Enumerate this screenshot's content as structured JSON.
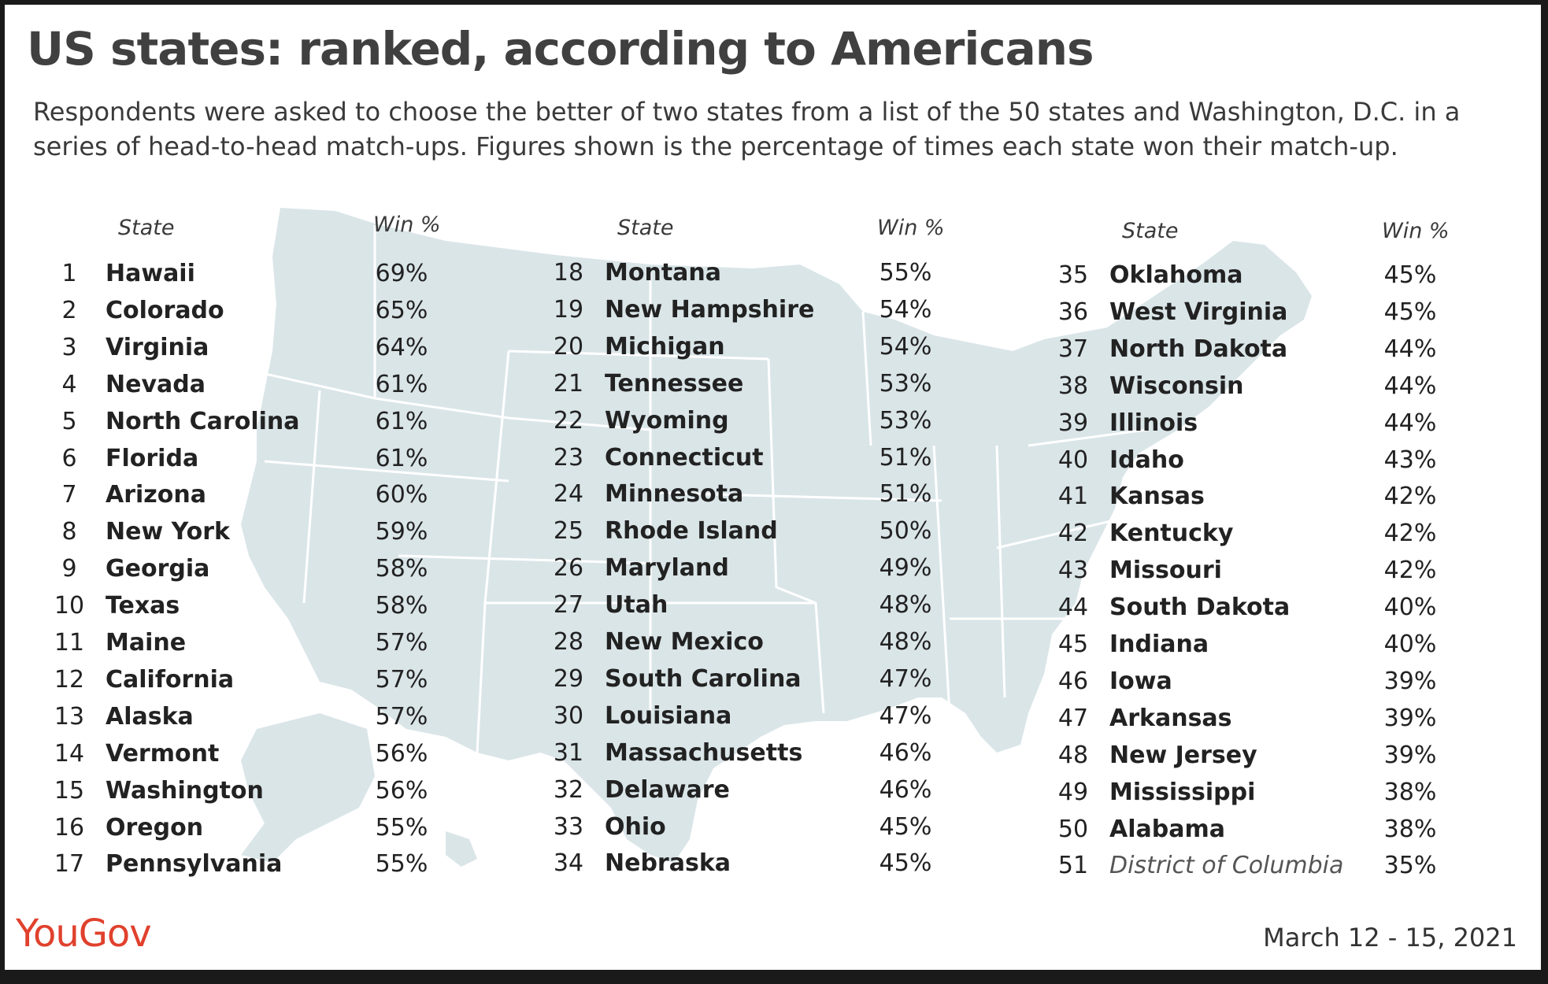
{
  "chart_data": {
    "type": "table",
    "title": "US states: ranked, according to Americans",
    "subtitle": "Respondents were asked to choose the better of two states from a list of the 50 states and Washington, D.C. in a series of head-to-head match-ups. Figures shown is the percentage of times each state won their match-up.",
    "columns": [
      "State",
      "Win %"
    ],
    "rows": [
      {
        "rank": "1",
        "state": "Hawaii",
        "win": "69%"
      },
      {
        "rank": "2",
        "state": "Colorado",
        "win": "65%"
      },
      {
        "rank": "3",
        "state": "Virginia",
        "win": "64%"
      },
      {
        "rank": "4",
        "state": "Nevada",
        "win": "61%"
      },
      {
        "rank": "5",
        "state": "North Carolina",
        "win": "61%"
      },
      {
        "rank": "6",
        "state": "Florida",
        "win": "61%"
      },
      {
        "rank": "7",
        "state": "Arizona",
        "win": "60%"
      },
      {
        "rank": "8",
        "state": "New York",
        "win": "59%"
      },
      {
        "rank": "9",
        "state": "Georgia",
        "win": "58%"
      },
      {
        "rank": "10",
        "state": "Texas",
        "win": "58%"
      },
      {
        "rank": "11",
        "state": "Maine",
        "win": "57%"
      },
      {
        "rank": "12",
        "state": "California",
        "win": "57%"
      },
      {
        "rank": "13",
        "state": "Alaska",
        "win": "57%"
      },
      {
        "rank": "14",
        "state": "Vermont",
        "win": "56%"
      },
      {
        "rank": "15",
        "state": "Washington",
        "win": "56%"
      },
      {
        "rank": "16",
        "state": "Oregon",
        "win": "55%"
      },
      {
        "rank": "17",
        "state": "Pennsylvania",
        "win": "55%"
      },
      {
        "rank": "18",
        "state": "Montana",
        "win": "55%"
      },
      {
        "rank": "19",
        "state": "New Hampshire",
        "win": "54%"
      },
      {
        "rank": "20",
        "state": "Michigan",
        "win": "54%"
      },
      {
        "rank": "21",
        "state": "Tennessee",
        "win": "53%"
      },
      {
        "rank": "22",
        "state": "Wyoming",
        "win": "53%"
      },
      {
        "rank": "23",
        "state": "Connecticut",
        "win": "51%"
      },
      {
        "rank": "24",
        "state": "Minnesota",
        "win": "51%"
      },
      {
        "rank": "25",
        "state": "Rhode Island",
        "win": "50%"
      },
      {
        "rank": "26",
        "state": "Maryland",
        "win": "49%"
      },
      {
        "rank": "27",
        "state": "Utah",
        "win": "48%"
      },
      {
        "rank": "28",
        "state": "New Mexico",
        "win": "48%"
      },
      {
        "rank": "29",
        "state": "South Carolina",
        "win": "47%"
      },
      {
        "rank": "30",
        "state": "Louisiana",
        "win": "47%"
      },
      {
        "rank": "31",
        "state": "Massachusetts",
        "win": "46%"
      },
      {
        "rank": "32",
        "state": "Delaware",
        "win": "46%"
      },
      {
        "rank": "33",
        "state": "Ohio",
        "win": "45%"
      },
      {
        "rank": "34",
        "state": "Nebraska",
        "win": "45%"
      },
      {
        "rank": "35",
        "state": "Oklahoma",
        "win": "45%"
      },
      {
        "rank": "36",
        "state": "West Virginia",
        "win": "45%"
      },
      {
        "rank": "37",
        "state": "North Dakota",
        "win": "44%"
      },
      {
        "rank": "38",
        "state": "Wisconsin",
        "win": "44%"
      },
      {
        "rank": "39",
        "state": "Illinois",
        "win": "44%"
      },
      {
        "rank": "40",
        "state": "Idaho",
        "win": "43%"
      },
      {
        "rank": "41",
        "state": "Kansas",
        "win": "42%"
      },
      {
        "rank": "42",
        "state": "Kentucky",
        "win": "42%"
      },
      {
        "rank": "43",
        "state": "Missouri",
        "win": "42%"
      },
      {
        "rank": "44",
        "state": "South Dakota",
        "win": "40%"
      },
      {
        "rank": "45",
        "state": "Indiana",
        "win": "40%"
      },
      {
        "rank": "46",
        "state": "Iowa",
        "win": "39%"
      },
      {
        "rank": "47",
        "state": "Arkansas",
        "win": "39%"
      },
      {
        "rank": "48",
        "state": "New Jersey",
        "win": "39%"
      },
      {
        "rank": "49",
        "state": "Mississippi",
        "win": "38%"
      },
      {
        "rank": "50",
        "state": "Alabama",
        "win": "38%"
      },
      {
        "rank": "51",
        "state": "District of Columbia",
        "win": "35%",
        "italic": true
      }
    ]
  },
  "headers": {
    "state": "State",
    "win": "Win %"
  },
  "brand": {
    "logo_text": "YouGov",
    "logo_color": "#e0412d"
  },
  "date_label": "March 12 - 15, 2021",
  "colors": {
    "map_fill": "#dae5e8",
    "map_lines": "#ffffff",
    "text": "#222222"
  }
}
